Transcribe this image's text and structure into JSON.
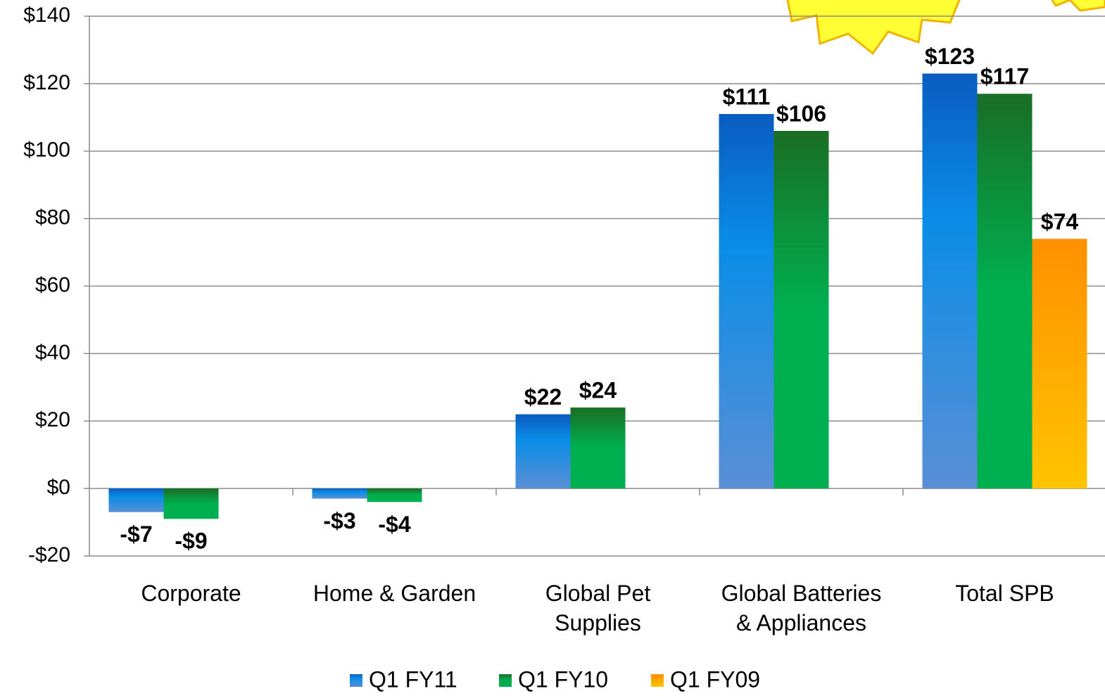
{
  "chart_data": {
    "type": "bar",
    "categories": [
      "Corporate",
      "Home & Garden",
      "Global Pet Supplies",
      "Global Batteries & Appliances",
      "Total SPB"
    ],
    "series": [
      {
        "name": "Q1 FY11",
        "color": "#0a8de6",
        "values": [
          -7,
          -3,
          22,
          111,
          123
        ],
        "value_labels": [
          "-$7",
          "-$3",
          "$22",
          "$111",
          "$123"
        ]
      },
      {
        "name": "Q1 FY10",
        "color": "#00b050",
        "values": [
          -9,
          -4,
          24,
          106,
          117
        ],
        "value_labels": [
          "-$9",
          "-$4",
          "$24",
          "$106",
          "$117"
        ]
      },
      {
        "name": "Q1 FY09",
        "color": "#ffa500",
        "values": [
          null,
          null,
          null,
          null,
          74
        ],
        "value_labels": [
          null,
          null,
          null,
          null,
          "$74"
        ]
      }
    ],
    "ylim": [
      -20,
      140
    ],
    "yticks": [
      {
        "value": -20,
        "label": "-$20"
      },
      {
        "value": 0,
        "label": "$0"
      },
      {
        "value": 20,
        "label": "$20"
      },
      {
        "value": 40,
        "label": "$40"
      },
      {
        "value": 60,
        "label": "$60"
      },
      {
        "value": 80,
        "label": "$80"
      },
      {
        "value": 100,
        "label": "$100"
      },
      {
        "value": 120,
        "label": "$120"
      },
      {
        "value": 140,
        "label": "$140"
      }
    ],
    "grid": true,
    "legend": "bottom"
  }
}
